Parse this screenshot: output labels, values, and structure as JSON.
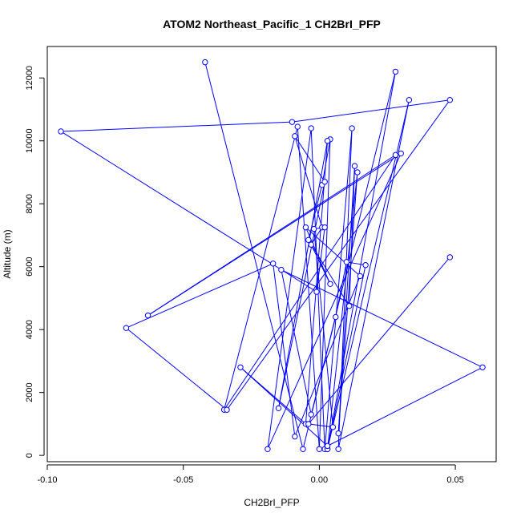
{
  "chart_data": {
    "type": "line",
    "title": "ATOM2 Northeast_Pacific_1 CH2BrI_PFP",
    "xlabel": "CH2BrI_PFP",
    "ylabel": "Altitude (m)",
    "xlim": [
      -0.1,
      0.065
    ],
    "ylim": [
      -200,
      13000
    ],
    "x_ticks": [
      {
        "value": -0.1,
        "label": "-0.10"
      },
      {
        "value": -0.05,
        "label": "-0.05"
      },
      {
        "value": 0.0,
        "label": "0.00"
      },
      {
        "value": 0.05,
        "label": "0.05"
      }
    ],
    "y_ticks": [
      {
        "value": 0,
        "label": "0"
      },
      {
        "value": 2000,
        "label": "2000"
      },
      {
        "value": 4000,
        "label": "4000"
      },
      {
        "value": 6000,
        "label": "6000"
      },
      {
        "value": 8000,
        "label": "8000"
      },
      {
        "value": 10000,
        "label": "10000"
      },
      {
        "value": 12000,
        "label": "12000"
      }
    ],
    "grid": false,
    "line_color": "#0000ff",
    "marker": "open-circle",
    "series": [
      {
        "points": [
          {
            "x": -0.042,
            "y": 12500
          },
          {
            "x": -0.006,
            "y": 200
          },
          {
            "x": 0.028,
            "y": 12200
          },
          {
            "x": 0.003,
            "y": 200
          },
          {
            "x": 0.033,
            "y": 11300
          },
          {
            "x": 0.007,
            "y": 200
          },
          {
            "x": 0.012,
            "y": 10400
          },
          {
            "x": 0.002,
            "y": 200
          },
          {
            "x": -0.003,
            "y": 10400
          },
          {
            "x": -0.019,
            "y": 200
          },
          {
            "x": 0.03,
            "y": 9600
          },
          {
            "x": -0.063,
            "y": 4450
          },
          {
            "x": 0.028,
            "y": 9550
          },
          {
            "x": -0.035,
            "y": 1450
          },
          {
            "x": -0.008,
            "y": 10450
          },
          {
            "x": 0.0,
            "y": 200
          },
          {
            "x": 0.004,
            "y": 10050
          },
          {
            "x": 0.001,
            "y": 8600
          },
          {
            "x": -0.004,
            "y": 6850
          },
          {
            "x": 0.011,
            "y": 4750
          },
          {
            "x": 0.013,
            "y": 9200
          },
          {
            "x": 0.007,
            "y": 700
          },
          {
            "x": 0.014,
            "y": 9000
          },
          {
            "x": 0.003,
            "y": 200
          },
          {
            "x": 0.017,
            "y": 6050
          },
          {
            "x": 0.01,
            "y": 6150
          },
          {
            "x": 0.006,
            "y": 4400
          },
          {
            "x": -0.003,
            "y": 1300
          },
          {
            "x": -0.014,
            "y": 5900
          },
          {
            "x": 0.06,
            "y": 2800
          },
          {
            "x": 0.003,
            "y": 300
          },
          {
            "x": -0.029,
            "y": 2800
          },
          {
            "x": -0.005,
            "y": 1000
          },
          {
            "x": 0.003,
            "y": 10000
          },
          {
            "x": -0.015,
            "y": 1500
          },
          {
            "x": 0.002,
            "y": 8700
          },
          {
            "x": -0.009,
            "y": 10150
          },
          {
            "x": 0.001,
            "y": 7250
          },
          {
            "x": -0.003,
            "y": 6700
          },
          {
            "x": 0.004,
            "y": 5450
          },
          {
            "x": -0.005,
            "y": 7250
          },
          {
            "x": 0.015,
            "y": 5700
          },
          {
            "x": -0.009,
            "y": 600
          },
          {
            "x": -0.017,
            "y": 6100
          },
          {
            "x": -0.071,
            "y": 4050
          },
          {
            "x": -0.034,
            "y": 1450
          },
          {
            "x": 0.048,
            "y": 11300
          },
          {
            "x": -0.01,
            "y": 10600
          },
          {
            "x": -0.095,
            "y": 10300
          },
          {
            "x": -0.001,
            "y": 5200
          },
          {
            "x": 0.002,
            "y": 7250
          },
          {
            "x": -0.002,
            "y": 7200
          },
          {
            "x": 0.005,
            "y": 900
          },
          {
            "x": -0.004,
            "y": 1000
          },
          {
            "x": 0.048,
            "y": 6300
          }
        ]
      }
    ]
  }
}
